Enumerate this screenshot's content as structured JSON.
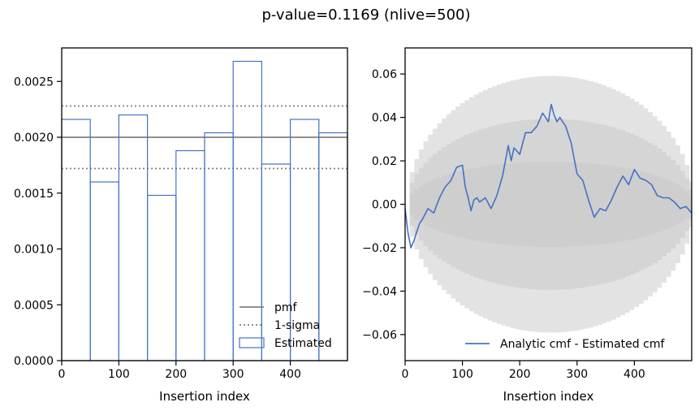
{
  "suptitle": "p-value=0.1169 (nlive=500)",
  "colors": {
    "estimated": "#4472c4",
    "pmf": "#808080",
    "sigma": "#808080",
    "cmf": "#4472c4",
    "band": "#c8c8c8"
  },
  "chart_data": [
    {
      "type": "histogram",
      "xlabel": "Insertion index",
      "ylabel": "",
      "xlim": [
        0,
        500
      ],
      "ylim": [
        0,
        0.0028
      ],
      "xticks": [
        0,
        100,
        200,
        300,
        400
      ],
      "yticks": [
        0.0,
        0.0005,
        0.001,
        0.0015,
        0.002,
        0.0025
      ],
      "ytick_labels": [
        "0.0000",
        "0.0005",
        "0.0010",
        "0.0015",
        "0.0020",
        "0.0025"
      ],
      "bin_edges": [
        0,
        50,
        100,
        150,
        200,
        250,
        300,
        350,
        400,
        450,
        500
      ],
      "values": [
        0.00216,
        0.0016,
        0.0022,
        0.00148,
        0.00188,
        0.00204,
        0.00268,
        0.00176,
        0.00216,
        0.00204
      ],
      "pmf": 0.002,
      "sigma_lines": [
        0.00172,
        0.00228
      ],
      "legend": {
        "position": "lower right",
        "entries": [
          "pmf",
          "1-sigma",
          "Estimated"
        ]
      }
    },
    {
      "type": "line",
      "xlabel": "Insertion index",
      "ylabel": "",
      "xlim": [
        0,
        500
      ],
      "ylim": [
        -0.072,
        0.072
      ],
      "xticks": [
        0,
        100,
        200,
        300,
        400
      ],
      "yticks": [
        -0.06,
        -0.04,
        -0.02,
        0.0,
        0.02,
        0.04,
        0.06
      ],
      "ytick_labels": [
        "−0.06",
        "−0.04",
        "−0.02",
        "0.00",
        "0.02",
        "0.04",
        "0.06"
      ],
      "sigma_bands": [
        1,
        2,
        3
      ],
      "series": [
        {
          "name": "Analytic cmf - Estimated cmf",
          "x": [
            0,
            5,
            10,
            15,
            20,
            25,
            30,
            40,
            50,
            60,
            70,
            80,
            90,
            100,
            105,
            110,
            115,
            120,
            125,
            130,
            140,
            150,
            160,
            170,
            180,
            185,
            190,
            200,
            210,
            220,
            230,
            240,
            250,
            255,
            260,
            265,
            270,
            280,
            290,
            300,
            310,
            320,
            330,
            340,
            350,
            360,
            370,
            380,
            390,
            400,
            410,
            420,
            430,
            440,
            450,
            460,
            470,
            480,
            490,
            500
          ],
          "y": [
            -0.002,
            -0.013,
            -0.02,
            -0.017,
            -0.013,
            -0.009,
            -0.007,
            -0.002,
            -0.004,
            0.003,
            0.008,
            0.011,
            0.017,
            0.018,
            0.008,
            0.003,
            -0.003,
            0.002,
            0.003,
            0.001,
            0.003,
            -0.002,
            0.004,
            0.013,
            0.027,
            0.02,
            0.026,
            0.023,
            0.033,
            0.033,
            0.036,
            0.042,
            0.038,
            0.046,
            0.041,
            0.038,
            0.04,
            0.036,
            0.028,
            0.014,
            0.011,
            0.002,
            -0.006,
            -0.002,
            -0.003,
            0.002,
            0.008,
            0.013,
            0.009,
            0.016,
            0.012,
            0.011,
            0.009,
            0.004,
            0.003,
            0.003,
            0.001,
            -0.002,
            -0.001,
            -0.004
          ]
        }
      ],
      "legend": {
        "position": "lower right",
        "entries": [
          "Analytic cmf - Estimated cmf"
        ]
      }
    }
  ]
}
